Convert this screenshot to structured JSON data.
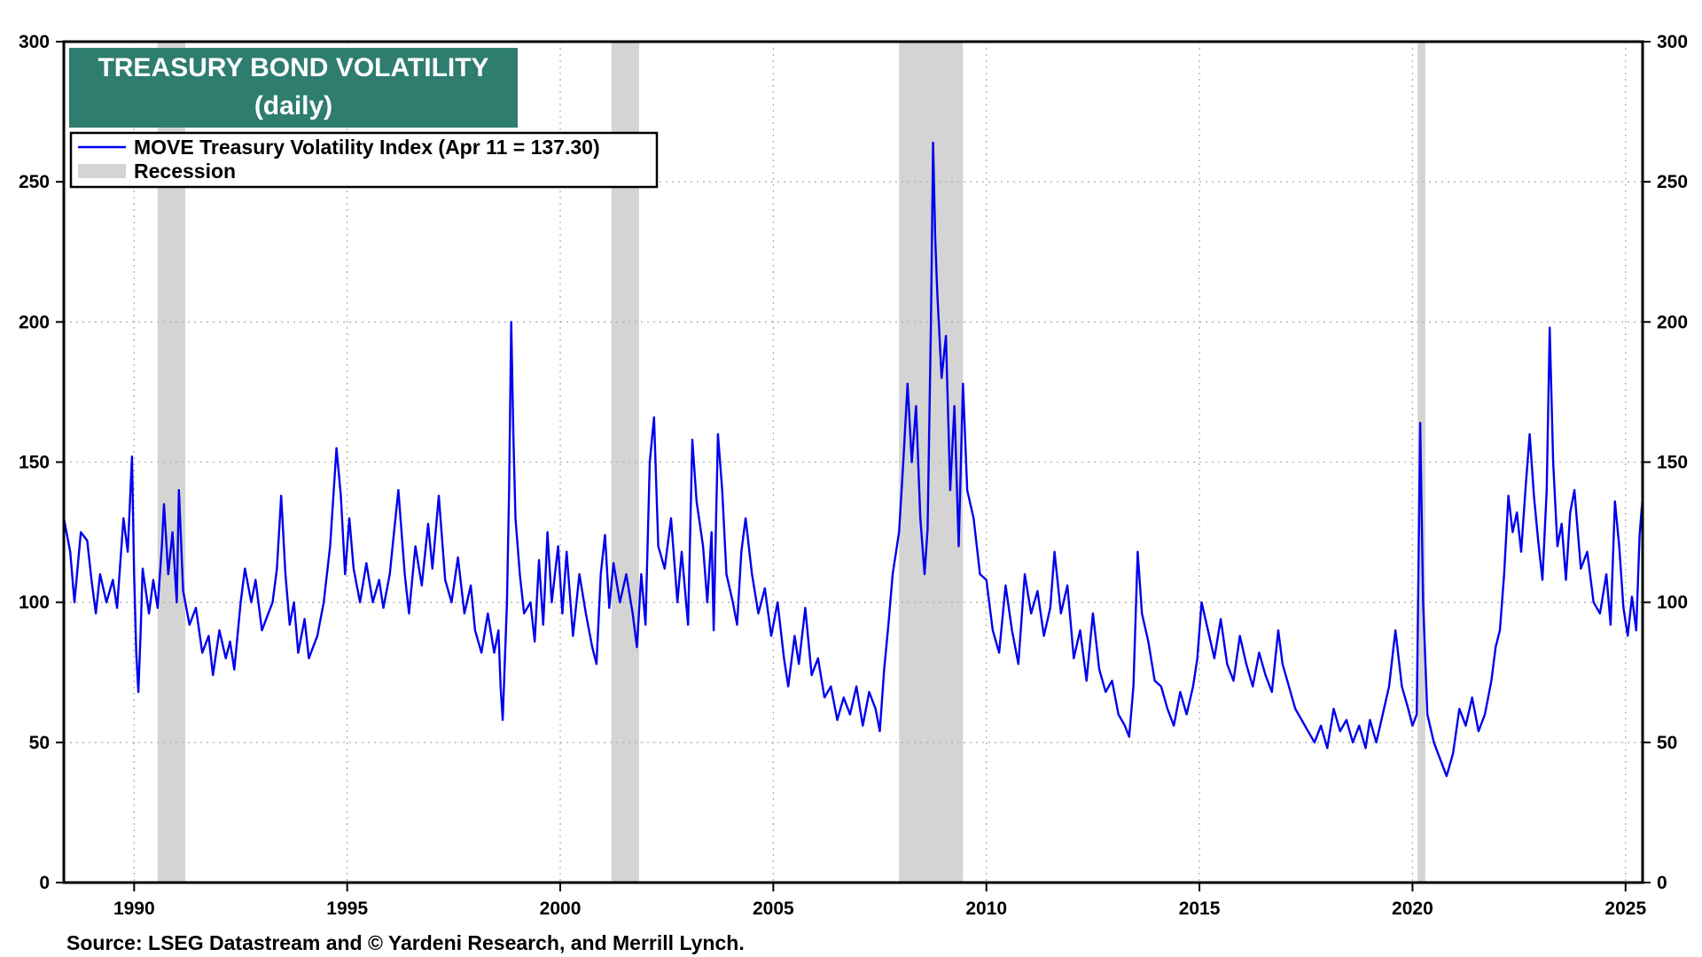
{
  "chart_data": {
    "type": "line",
    "title": "TREASURY BOND VOLATILITY",
    "subtitle": "(daily)",
    "xlabel": "",
    "ylabel": "",
    "ylim": [
      0,
      300
    ],
    "xlim": [
      1988.35,
      2025.4
    ],
    "y_ticks": [
      0,
      50,
      100,
      150,
      200,
      250,
      300
    ],
    "x_ticks": [
      1990,
      1995,
      2000,
      2005,
      2010,
      2015,
      2020,
      2025
    ],
    "grid": true,
    "legend_position": "top-left",
    "line_color": "#0000ee",
    "recession_color": "#d4d4d4",
    "title_bg_color": "#2e7d6f",
    "legend": [
      {
        "name": "MOVE Treasury Volatility Index (Apr 11 = 137.30)",
        "kind": "line"
      },
      {
        "name": "Recession",
        "kind": "band"
      }
    ],
    "recessions": [
      {
        "start": 1990.55,
        "end": 1991.2
      },
      {
        "start": 2001.2,
        "end": 2001.85
      },
      {
        "start": 2007.95,
        "end": 2009.45
      },
      {
        "start": 2020.12,
        "end": 2020.3
      }
    ],
    "series": [
      {
        "name": "MOVE Treasury Volatility Index (Apr 11 = 137.30)",
        "points": [
          [
            1988.35,
            130
          ],
          [
            1988.5,
            118
          ],
          [
            1988.6,
            100
          ],
          [
            1988.75,
            125
          ],
          [
            1988.9,
            122
          ],
          [
            1989.0,
            108
          ],
          [
            1989.1,
            96
          ],
          [
            1989.2,
            110
          ],
          [
            1989.35,
            100
          ],
          [
            1989.5,
            108
          ],
          [
            1989.6,
            98
          ],
          [
            1989.75,
            130
          ],
          [
            1989.85,
            118
          ],
          [
            1989.95,
            152
          ],
          [
            1990.0,
            110
          ],
          [
            1990.05,
            82
          ],
          [
            1990.1,
            68
          ],
          [
            1990.15,
            88
          ],
          [
            1990.2,
            112
          ],
          [
            1990.35,
            96
          ],
          [
            1990.45,
            108
          ],
          [
            1990.55,
            98
          ],
          [
            1990.65,
            120
          ],
          [
            1990.7,
            135
          ],
          [
            1990.8,
            110
          ],
          [
            1990.9,
            125
          ],
          [
            1991.0,
            100
          ],
          [
            1991.05,
            140
          ],
          [
            1991.15,
            104
          ],
          [
            1991.3,
            92
          ],
          [
            1991.45,
            98
          ],
          [
            1991.6,
            82
          ],
          [
            1991.75,
            88
          ],
          [
            1991.85,
            74
          ],
          [
            1992.0,
            90
          ],
          [
            1992.15,
            80
          ],
          [
            1992.25,
            86
          ],
          [
            1992.35,
            76
          ],
          [
            1992.5,
            100
          ],
          [
            1992.6,
            112
          ],
          [
            1992.75,
            100
          ],
          [
            1992.85,
            108
          ],
          [
            1993.0,
            90
          ],
          [
            1993.15,
            96
          ],
          [
            1993.25,
            100
          ],
          [
            1993.35,
            112
          ],
          [
            1993.45,
            138
          ],
          [
            1993.55,
            110
          ],
          [
            1993.65,
            92
          ],
          [
            1993.75,
            100
          ],
          [
            1993.85,
            82
          ],
          [
            1994.0,
            94
          ],
          [
            1994.1,
            80
          ],
          [
            1994.3,
            88
          ],
          [
            1994.45,
            100
          ],
          [
            1994.6,
            120
          ],
          [
            1994.75,
            155
          ],
          [
            1994.85,
            138
          ],
          [
            1994.95,
            110
          ],
          [
            1995.05,
            130
          ],
          [
            1995.15,
            112
          ],
          [
            1995.3,
            100
          ],
          [
            1995.45,
            114
          ],
          [
            1995.6,
            100
          ],
          [
            1995.75,
            108
          ],
          [
            1995.85,
            98
          ],
          [
            1996.0,
            110
          ],
          [
            1996.1,
            125
          ],
          [
            1996.2,
            140
          ],
          [
            1996.35,
            110
          ],
          [
            1996.45,
            96
          ],
          [
            1996.6,
            120
          ],
          [
            1996.75,
            106
          ],
          [
            1996.9,
            128
          ],
          [
            1997.0,
            112
          ],
          [
            1997.15,
            138
          ],
          [
            1997.3,
            108
          ],
          [
            1997.45,
            100
          ],
          [
            1997.6,
            116
          ],
          [
            1997.75,
            96
          ],
          [
            1997.9,
            106
          ],
          [
            1998.0,
            90
          ],
          [
            1998.15,
            82
          ],
          [
            1998.3,
            96
          ],
          [
            1998.45,
            82
          ],
          [
            1998.55,
            90
          ],
          [
            1998.6,
            70
          ],
          [
            1998.65,
            58
          ],
          [
            1998.75,
            100
          ],
          [
            1998.8,
            140
          ],
          [
            1998.85,
            200
          ],
          [
            1998.9,
            160
          ],
          [
            1998.95,
            130
          ],
          [
            1999.05,
            110
          ],
          [
            1999.15,
            96
          ],
          [
            1999.3,
            100
          ],
          [
            1999.4,
            86
          ],
          [
            1999.5,
            115
          ],
          [
            1999.6,
            92
          ],
          [
            1999.7,
            125
          ],
          [
            1999.8,
            100
          ],
          [
            1999.95,
            120
          ],
          [
            2000.05,
            96
          ],
          [
            2000.15,
            118
          ],
          [
            2000.3,
            88
          ],
          [
            2000.45,
            110
          ],
          [
            2000.6,
            96
          ],
          [
            2000.75,
            84
          ],
          [
            2000.85,
            78
          ],
          [
            2000.95,
            110
          ],
          [
            2001.05,
            124
          ],
          [
            2001.15,
            98
          ],
          [
            2001.25,
            114
          ],
          [
            2001.4,
            100
          ],
          [
            2001.55,
            110
          ],
          [
            2001.7,
            96
          ],
          [
            2001.8,
            84
          ],
          [
            2001.9,
            110
          ],
          [
            2002.0,
            92
          ],
          [
            2002.1,
            150
          ],
          [
            2002.2,
            166
          ],
          [
            2002.3,
            120
          ],
          [
            2002.45,
            112
          ],
          [
            2002.6,
            130
          ],
          [
            2002.75,
            100
          ],
          [
            2002.85,
            118
          ],
          [
            2003.0,
            92
          ],
          [
            2003.1,
            158
          ],
          [
            2003.2,
            136
          ],
          [
            2003.35,
            120
          ],
          [
            2003.45,
            100
          ],
          [
            2003.55,
            125
          ],
          [
            2003.6,
            90
          ],
          [
            2003.7,
            160
          ],
          [
            2003.8,
            140
          ],
          [
            2003.9,
            110
          ],
          [
            2004.05,
            100
          ],
          [
            2004.15,
            92
          ],
          [
            2004.25,
            118
          ],
          [
            2004.35,
            130
          ],
          [
            2004.5,
            110
          ],
          [
            2004.65,
            96
          ],
          [
            2004.8,
            105
          ],
          [
            2004.95,
            88
          ],
          [
            2005.1,
            100
          ],
          [
            2005.25,
            80
          ],
          [
            2005.35,
            70
          ],
          [
            2005.5,
            88
          ],
          [
            2005.6,
            78
          ],
          [
            2005.75,
            98
          ],
          [
            2005.9,
            74
          ],
          [
            2006.05,
            80
          ],
          [
            2006.2,
            66
          ],
          [
            2006.35,
            70
          ],
          [
            2006.5,
            58
          ],
          [
            2006.65,
            66
          ],
          [
            2006.8,
            60
          ],
          [
            2006.95,
            70
          ],
          [
            2007.1,
            56
          ],
          [
            2007.25,
            68
          ],
          [
            2007.4,
            62
          ],
          [
            2007.5,
            54
          ],
          [
            2007.6,
            76
          ],
          [
            2007.7,
            92
          ],
          [
            2007.8,
            110
          ],
          [
            2007.95,
            125
          ],
          [
            2008.05,
            150
          ],
          [
            2008.15,
            178
          ],
          [
            2008.25,
            150
          ],
          [
            2008.35,
            170
          ],
          [
            2008.45,
            130
          ],
          [
            2008.55,
            110
          ],
          [
            2008.62,
            126
          ],
          [
            2008.7,
            200
          ],
          [
            2008.75,
            264
          ],
          [
            2008.8,
            230
          ],
          [
            2008.85,
            210
          ],
          [
            2008.95,
            180
          ],
          [
            2009.05,
            195
          ],
          [
            2009.15,
            140
          ],
          [
            2009.25,
            170
          ],
          [
            2009.35,
            120
          ],
          [
            2009.45,
            178
          ],
          [
            2009.55,
            140
          ],
          [
            2009.7,
            130
          ],
          [
            2009.85,
            110
          ],
          [
            2010.0,
            108
          ],
          [
            2010.15,
            90
          ],
          [
            2010.3,
            82
          ],
          [
            2010.45,
            106
          ],
          [
            2010.6,
            90
          ],
          [
            2010.75,
            78
          ],
          [
            2010.9,
            110
          ],
          [
            2011.05,
            96
          ],
          [
            2011.2,
            104
          ],
          [
            2011.35,
            88
          ],
          [
            2011.5,
            98
          ],
          [
            2011.6,
            118
          ],
          [
            2011.75,
            96
          ],
          [
            2011.9,
            106
          ],
          [
            2012.05,
            80
          ],
          [
            2012.2,
            90
          ],
          [
            2012.35,
            72
          ],
          [
            2012.5,
            96
          ],
          [
            2012.65,
            76
          ],
          [
            2012.8,
            68
          ],
          [
            2012.95,
            72
          ],
          [
            2013.1,
            60
          ],
          [
            2013.25,
            56
          ],
          [
            2013.35,
            52
          ],
          [
            2013.45,
            70
          ],
          [
            2013.55,
            118
          ],
          [
            2013.65,
            96
          ],
          [
            2013.8,
            86
          ],
          [
            2013.95,
            72
          ],
          [
            2014.1,
            70
          ],
          [
            2014.25,
            62
          ],
          [
            2014.4,
            56
          ],
          [
            2014.55,
            68
          ],
          [
            2014.7,
            60
          ],
          [
            2014.85,
            70
          ],
          [
            2014.95,
            80
          ],
          [
            2015.05,
            100
          ],
          [
            2015.2,
            90
          ],
          [
            2015.35,
            80
          ],
          [
            2015.5,
            94
          ],
          [
            2015.65,
            78
          ],
          [
            2015.8,
            72
          ],
          [
            2015.95,
            88
          ],
          [
            2016.1,
            78
          ],
          [
            2016.25,
            70
          ],
          [
            2016.4,
            82
          ],
          [
            2016.55,
            74
          ],
          [
            2016.7,
            68
          ],
          [
            2016.85,
            90
          ],
          [
            2016.95,
            78
          ],
          [
            2017.1,
            70
          ],
          [
            2017.25,
            62
          ],
          [
            2017.4,
            58
          ],
          [
            2017.55,
            54
          ],
          [
            2017.7,
            50
          ],
          [
            2017.85,
            56
          ],
          [
            2018.0,
            48
          ],
          [
            2018.15,
            62
          ],
          [
            2018.3,
            54
          ],
          [
            2018.45,
            58
          ],
          [
            2018.6,
            50
          ],
          [
            2018.75,
            56
          ],
          [
            2018.9,
            48
          ],
          [
            2019.0,
            58
          ],
          [
            2019.15,
            50
          ],
          [
            2019.3,
            60
          ],
          [
            2019.45,
            70
          ],
          [
            2019.6,
            90
          ],
          [
            2019.75,
            70
          ],
          [
            2019.9,
            62
          ],
          [
            2020.0,
            56
          ],
          [
            2020.1,
            60
          ],
          [
            2020.18,
            164
          ],
          [
            2020.25,
            100
          ],
          [
            2020.35,
            60
          ],
          [
            2020.5,
            50
          ],
          [
            2020.65,
            44
          ],
          [
            2020.8,
            38
          ],
          [
            2020.95,
            46
          ],
          [
            2021.1,
            62
          ],
          [
            2021.25,
            56
          ],
          [
            2021.4,
            66
          ],
          [
            2021.55,
            54
          ],
          [
            2021.7,
            60
          ],
          [
            2021.85,
            72
          ],
          [
            2021.95,
            84
          ],
          [
            2022.05,
            90
          ],
          [
            2022.15,
            110
          ],
          [
            2022.25,
            138
          ],
          [
            2022.35,
            125
          ],
          [
            2022.45,
            132
          ],
          [
            2022.55,
            118
          ],
          [
            2022.65,
            140
          ],
          [
            2022.75,
            160
          ],
          [
            2022.85,
            138
          ],
          [
            2022.95,
            122
          ],
          [
            2023.05,
            108
          ],
          [
            2023.15,
            140
          ],
          [
            2023.22,
            198
          ],
          [
            2023.3,
            150
          ],
          [
            2023.4,
            120
          ],
          [
            2023.5,
            128
          ],
          [
            2023.6,
            108
          ],
          [
            2023.7,
            132
          ],
          [
            2023.8,
            140
          ],
          [
            2023.95,
            112
          ],
          [
            2024.1,
            118
          ],
          [
            2024.25,
            100
          ],
          [
            2024.4,
            96
          ],
          [
            2024.55,
            110
          ],
          [
            2024.65,
            92
          ],
          [
            2024.75,
            136
          ],
          [
            2024.85,
            120
          ],
          [
            2024.95,
            98
          ],
          [
            2025.05,
            88
          ],
          [
            2025.15,
            102
          ],
          [
            2025.25,
            90
          ],
          [
            2025.33,
            124
          ],
          [
            2025.4,
            137.3
          ]
        ]
      }
    ],
    "source": "Source: LSEG Datastream and © Yardeni Research, and Merrill Lynch."
  }
}
